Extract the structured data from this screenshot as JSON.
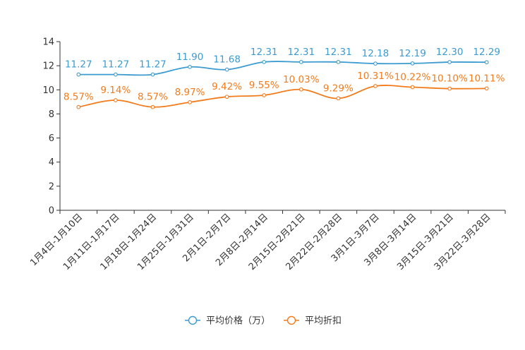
{
  "chart_data": {
    "type": "line",
    "title": "",
    "xlabel": "",
    "ylabel": "",
    "ylim": [
      0,
      14
    ],
    "yticks": [
      0,
      2,
      4,
      6,
      8,
      10,
      12,
      14
    ],
    "ytick_labels": [
      "0",
      "2",
      "4",
      "6",
      "8",
      "10",
      "12",
      "14"
    ],
    "grid": false,
    "legend_position": "bottom",
    "categories": [
      "1月4日-1月10日",
      "1月11日-1月17日",
      "1月18日-1月24日",
      "1月25日-1月31日",
      "2月1日-2月7日",
      "2月8日-2月14日",
      "2月15日-2月21日",
      "2月22日-2月28日",
      "3月1日-3月7日",
      "3月8日-3月14日",
      "3月15日-3月21日",
      "3月22日-3月28日"
    ],
    "series": [
      {
        "name": "平均价格（万）",
        "color": "#3c9bd1",
        "values": [
          11.27,
          11.27,
          11.27,
          11.9,
          11.68,
          12.31,
          12.31,
          12.31,
          12.18,
          12.19,
          12.3,
          12.29
        ],
        "labels": [
          "11.27",
          "11.27",
          "11.27",
          "11.90",
          "11.68",
          "12.31",
          "12.31",
          "12.31",
          "12.18",
          "12.19",
          "12.30",
          "12.29"
        ]
      },
      {
        "name": "平均折扣",
        "color": "#f27b1c",
        "values": [
          8.57,
          9.14,
          8.57,
          8.97,
          9.42,
          9.55,
          10.03,
          9.29,
          10.31,
          10.22,
          10.1,
          10.11
        ],
        "labels": [
          "8.57%",
          "9.14%",
          "8.57%",
          "8.97%",
          "9.42%",
          "9.55%",
          "10.03%",
          "9.29%",
          "10.31%",
          "10.22%",
          "10.10%",
          "10.11%"
        ]
      }
    ]
  }
}
